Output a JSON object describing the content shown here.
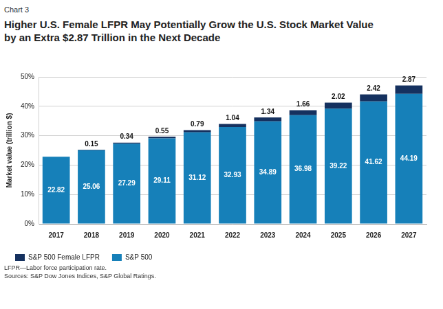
{
  "chart_data": {
    "type": "bar",
    "caption": "Chart 3",
    "title": [
      "Higher U.S. Female LFPR May Potentially Grow the U.S. Stock Market Value",
      "by an Extra $2.87 Trillion in the Next Decade"
    ],
    "y_label": "Market value (trillion $)",
    "categories": [
      "2017",
      "2018",
      "2019",
      "2020",
      "2021",
      "2022",
      "2023",
      "2024",
      "2025",
      "2026",
      "2027"
    ],
    "series": [
      {
        "name": "S&P 500",
        "color": "#1680b9",
        "values": [
          22.82,
          25.06,
          27.29,
          29.11,
          31.12,
          32.93,
          34.89,
          36.98,
          39.22,
          41.62,
          44.19
        ]
      },
      {
        "name": "S&P 500 Female LFPR",
        "color": "#15315f",
        "values": [
          null,
          0.15,
          0.34,
          0.55,
          0.79,
          1.04,
          1.34,
          1.66,
          2.02,
          2.42,
          2.87
        ]
      }
    ],
    "stacked": true,
    "data_labels": true,
    "grid": true,
    "legend": "bottom-left",
    "ylim": [
      0,
      50
    ],
    "yticks": [
      {
        "value": 0,
        "label": "0%"
      },
      {
        "value": 10,
        "label": "10%"
      },
      {
        "value": 20,
        "label": "20%"
      },
      {
        "value": 30,
        "label": "30%"
      },
      {
        "value": 40,
        "label": "40%"
      },
      {
        "value": 50,
        "label": "50%"
      }
    ],
    "notes": [
      "LFPR—Labor force participation rate.",
      "Sources: S&P Dow Jones Indices, S&P Global Ratings."
    ]
  }
}
